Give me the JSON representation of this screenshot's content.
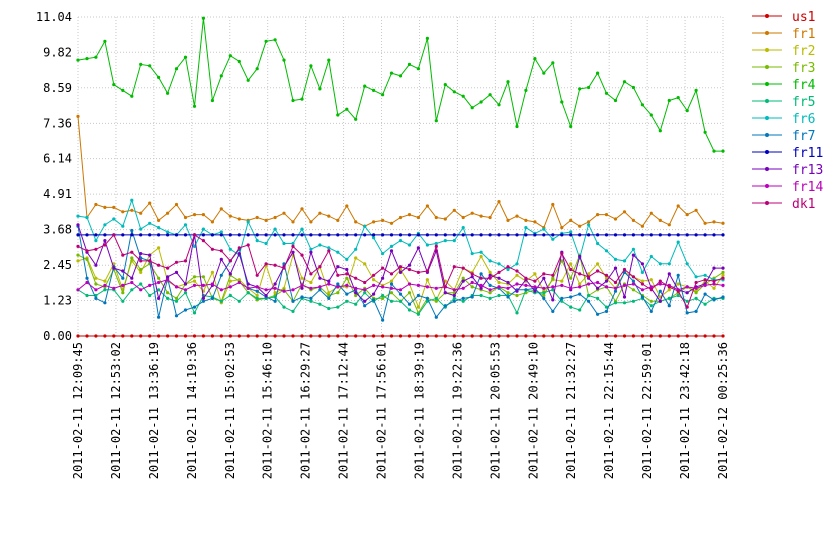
{
  "chart_data": {
    "type": "line",
    "title": "",
    "xlabel": "",
    "ylabel": "",
    "ylim": [
      0,
      11.04
    ],
    "grid": true,
    "legend_position": "right",
    "yticks": [
      "0.00",
      "1.23",
      "2.45",
      "3.68",
      "4.91",
      "6.14",
      "7.36",
      "8.59",
      "9.82",
      "11.04"
    ],
    "xticks": [
      "2011-02-11 12:09:45",
      "2011-02-11 12:53:02",
      "2011-02-11 13:36:19",
      "2011-02-11 14:19:36",
      "2011-02-11 15:02:53",
      "2011-02-11 15:46:10",
      "2011-02-11 16:29:27",
      "2011-02-11 17:12:44",
      "2011-02-11 17:56:01",
      "2011-02-11 18:39:19",
      "2011-02-11 19:22:36",
      "2011-02-11 20:05:53",
      "2011-02-11 20:49:10",
      "2011-02-11 21:32:27",
      "2011-02-11 22:15:44",
      "2011-02-11 22:59:01",
      "2011-02-11 23:42:18",
      "2011-02-12 00:25:36"
    ],
    "n_points": 73,
    "series": [
      {
        "name": "us1",
        "color": "#cc0000",
        "values": [
          0.0,
          0.0,
          0.0,
          0.0,
          0.0,
          0.0,
          0.0,
          0.0,
          0.0,
          0.0,
          0.0,
          0.0,
          0.0,
          0.0,
          0.0,
          0.0,
          0.0,
          0.0,
          0.0,
          0.0,
          0.0,
          0.0,
          0.0,
          0.0,
          0.0,
          0.0,
          0.0,
          0.0,
          0.0,
          0.0,
          0.0,
          0.0,
          0.0,
          0.0,
          0.0,
          0.0,
          0.0,
          0.0,
          0.0,
          0.0,
          0.0,
          0.0,
          0.0,
          0.0,
          0.0,
          0.0,
          0.0,
          0.0,
          0.0,
          0.0,
          0.0,
          0.0,
          0.0,
          0.0,
          0.0,
          0.0,
          0.0,
          0.0,
          0.0,
          0.0,
          0.0,
          0.0,
          0.0,
          0.0,
          0.0,
          0.0,
          0.0,
          0.0,
          0.0,
          0.0,
          0.0,
          0.0,
          0.0
        ]
      },
      {
        "name": "fr1",
        "color": "#cc7700",
        "values": [
          7.6,
          4.1,
          4.55,
          4.45,
          4.45,
          4.3,
          4.35,
          4.25,
          4.6,
          4.0,
          4.25,
          4.55,
          4.1,
          4.2,
          4.2,
          3.95,
          4.4,
          4.15,
          4.05,
          4.0,
          4.1,
          4.0,
          4.1,
          4.25,
          3.95,
          4.4,
          3.95,
          4.25,
          4.15,
          4.0,
          4.5,
          3.95,
          3.8,
          3.95,
          4.0,
          3.9,
          4.1,
          4.2,
          4.1,
          4.5,
          4.1,
          4.05,
          4.35,
          4.1,
          4.25,
          4.15,
          4.1,
          4.65,
          4.0,
          4.15,
          4.0,
          3.95,
          3.75,
          4.55,
          3.75,
          4.0,
          3.8,
          3.95,
          4.2,
          4.2,
          4.05,
          4.3,
          4.0,
          3.8,
          4.25,
          4.0,
          3.85,
          4.5,
          4.2,
          4.35,
          3.9,
          3.95,
          3.9
        ]
      },
      {
        "name": "fr2",
        "color": "#bbbb00",
        "values": [
          2.6,
          2.7,
          2.0,
          1.9,
          2.5,
          1.6,
          2.6,
          2.2,
          2.8,
          3.05,
          1.9,
          1.7,
          1.8,
          1.9,
          1.55,
          2.2,
          1.15,
          1.9,
          1.95,
          1.65,
          1.4,
          2.45,
          1.5,
          1.65,
          2.8,
          2.0,
          1.85,
          2.4,
          1.5,
          1.7,
          1.7,
          2.7,
          2.5,
          1.95,
          1.75,
          1.9,
          2.3,
          1.8,
          1.0,
          1.95,
          1.25,
          1.9,
          1.6,
          2.35,
          2.2,
          2.75,
          2.2,
          1.85,
          1.8,
          2.1,
          1.9,
          2.15,
          1.55,
          1.95,
          1.9,
          2.5,
          1.8,
          2.15,
          2.5,
          2.0,
          1.65,
          2.2,
          2.05,
          1.9,
          1.95,
          1.35,
          1.6,
          1.8,
          1.7,
          1.55,
          1.9,
          1.65,
          2.1
        ]
      },
      {
        "name": "fr3",
        "color": "#77bb00",
        "values": [
          2.8,
          2.65,
          1.8,
          1.7,
          2.3,
          1.5,
          2.7,
          2.3,
          2.5,
          2.0,
          1.5,
          1.3,
          1.8,
          2.05,
          2.05,
          1.3,
          1.2,
          2.1,
          1.9,
          1.5,
          1.25,
          1.3,
          1.4,
          1.6,
          1.2,
          1.8,
          1.6,
          1.7,
          1.4,
          1.5,
          2.0,
          1.4,
          1.65,
          1.3,
          1.3,
          1.5,
          1.2,
          1.5,
          0.8,
          1.3,
          1.2,
          1.5,
          1.5,
          2.0,
          1.7,
          1.6,
          1.5,
          1.7,
          1.5,
          1.4,
          1.5,
          1.6,
          1.4,
          2.0,
          2.6,
          2.0,
          2.8,
          1.4,
          1.6,
          1.7,
          1.2,
          1.8,
          1.6,
          1.4,
          1.2,
          1.2,
          1.3,
          1.5,
          1.7,
          1.5,
          1.8,
          2.0,
          2.2
        ]
      },
      {
        "name": "fr4",
        "color": "#00bb00",
        "values": [
          9.55,
          9.6,
          9.65,
          10.2,
          8.7,
          8.5,
          8.3,
          9.4,
          9.35,
          8.95,
          8.4,
          9.25,
          9.65,
          7.95,
          11.0,
          8.15,
          9.0,
          9.7,
          9.5,
          8.85,
          9.25,
          10.2,
          10.25,
          9.55,
          8.15,
          8.2,
          9.35,
          8.55,
          9.55,
          7.65,
          7.85,
          7.5,
          8.65,
          8.5,
          8.35,
          9.1,
          9.0,
          9.4,
          9.25,
          10.3,
          7.45,
          8.7,
          8.45,
          8.3,
          7.9,
          8.1,
          8.35,
          8.0,
          8.8,
          7.25,
          8.5,
          9.6,
          9.1,
          9.45,
          8.1,
          7.25,
          8.55,
          8.6,
          9.1,
          8.4,
          8.15,
          8.8,
          8.6,
          8.0,
          7.65,
          7.1,
          8.15,
          8.25,
          7.8,
          8.5,
          7.05,
          6.4,
          6.4
        ]
      },
      {
        "name": "fr5",
        "color": "#00bb77",
        "values": [
          1.6,
          1.4,
          1.4,
          1.6,
          1.6,
          1.2,
          1.6,
          1.8,
          1.4,
          1.6,
          1.3,
          1.2,
          1.5,
          0.8,
          1.4,
          1.35,
          1.2,
          1.4,
          1.2,
          1.5,
          1.3,
          1.3,
          1.35,
          1.0,
          0.85,
          1.3,
          1.2,
          1.1,
          0.95,
          1.0,
          1.2,
          1.1,
          1.5,
          1.2,
          1.4,
          1.2,
          1.2,
          0.9,
          0.75,
          1.2,
          1.3,
          1.0,
          1.3,
          1.2,
          1.4,
          1.4,
          1.3,
          1.4,
          1.4,
          0.8,
          1.6,
          1.5,
          1.5,
          1.6,
          1.2,
          1.0,
          0.9,
          1.4,
          1.3,
          1.0,
          1.15,
          1.15,
          1.2,
          1.3,
          1.05,
          1.2,
          1.3,
          1.4,
          1.2,
          1.3,
          1.1,
          1.3,
          1.3
        ]
      },
      {
        "name": "fr6",
        "color": "#00bbbb",
        "values": [
          4.15,
          4.1,
          3.3,
          3.85,
          4.05,
          3.8,
          4.7,
          3.7,
          3.9,
          3.75,
          3.6,
          3.5,
          3.85,
          3.1,
          3.7,
          3.5,
          3.6,
          3.0,
          2.8,
          3.95,
          3.3,
          3.2,
          3.7,
          3.2,
          3.2,
          3.7,
          3.0,
          3.15,
          3.05,
          2.9,
          2.65,
          3.0,
          3.8,
          3.4,
          2.85,
          3.1,
          3.3,
          3.15,
          3.55,
          3.15,
          3.2,
          3.3,
          3.3,
          3.75,
          2.85,
          2.9,
          2.6,
          2.5,
          2.3,
          2.5,
          3.75,
          3.55,
          3.7,
          3.35,
          3.55,
          3.6,
          2.7,
          3.85,
          3.2,
          2.95,
          2.65,
          2.6,
          3.0,
          2.2,
          2.75,
          2.5,
          2.5,
          3.25,
          2.5,
          2.05,
          2.1,
          1.95,
          1.95
        ]
      },
      {
        "name": "fr7",
        "color": "#0077bb",
        "values": [
          3.8,
          2.0,
          1.3,
          1.15,
          2.4,
          2.0,
          3.65,
          2.7,
          2.6,
          0.65,
          2.0,
          0.7,
          0.9,
          1.0,
          1.2,
          1.3,
          2.1,
          2.6,
          3.0,
          1.65,
          1.55,
          1.35,
          1.2,
          2.5,
          1.2,
          1.35,
          1.3,
          1.6,
          1.3,
          1.8,
          1.45,
          1.6,
          1.05,
          1.25,
          0.55,
          1.8,
          1.45,
          1.1,
          1.4,
          1.3,
          0.65,
          1.05,
          1.2,
          1.3,
          1.35,
          2.15,
          1.75,
          1.65,
          1.35,
          1.6,
          1.6,
          1.65,
          1.3,
          0.85,
          1.3,
          1.35,
          1.45,
          1.2,
          0.75,
          0.85,
          1.55,
          2.2,
          1.9,
          1.35,
          0.85,
          1.55,
          1.05,
          2.1,
          0.8,
          0.85,
          1.45,
          1.25,
          1.35
        ]
      },
      {
        "name": "fr11",
        "color": "#0000bb",
        "values": [
          3.5,
          3.5,
          3.5,
          3.5,
          3.5,
          3.5,
          3.5,
          3.5,
          3.5,
          3.5,
          3.5,
          3.5,
          3.5,
          3.5,
          3.5,
          3.5,
          3.5,
          3.5,
          3.5,
          3.5,
          3.5,
          3.5,
          3.5,
          3.5,
          3.5,
          3.5,
          3.5,
          3.5,
          3.5,
          3.5,
          3.5,
          3.5,
          3.5,
          3.5,
          3.5,
          3.5,
          3.5,
          3.5,
          3.5,
          3.5,
          3.5,
          3.5,
          3.5,
          3.5,
          3.5,
          3.5,
          3.5,
          3.5,
          3.5,
          3.5,
          3.5,
          3.5,
          3.5,
          3.5,
          3.5,
          3.5,
          3.5,
          3.5,
          3.5,
          3.5,
          3.5,
          3.5,
          3.5,
          3.5,
          3.5,
          3.5,
          3.5,
          3.5,
          3.5,
          3.5,
          3.5,
          3.5,
          3.5
        ]
      },
      {
        "name": "fr13",
        "color": "#7700bb",
        "values": [
          3.85,
          2.9,
          2.45,
          3.3,
          2.35,
          2.25,
          2.0,
          2.85,
          2.8,
          1.3,
          2.05,
          2.2,
          1.8,
          3.5,
          1.3,
          1.75,
          2.65,
          2.15,
          2.85,
          1.8,
          1.7,
          1.4,
          1.8,
          2.4,
          2.9,
          1.65,
          2.9,
          2.0,
          1.9,
          2.4,
          2.3,
          1.5,
          1.2,
          1.45,
          2.0,
          2.95,
          2.2,
          2.45,
          3.05,
          2.2,
          2.95,
          1.5,
          1.4,
          1.9,
          2.05,
          1.65,
          2.1,
          2.0,
          1.85,
          1.55,
          1.95,
          1.55,
          2.0,
          1.25,
          2.9,
          1.6,
          2.75,
          2.0,
          1.65,
          1.9,
          2.35,
          1.35,
          2.8,
          2.5,
          1.65,
          1.2,
          2.15,
          1.6,
          1.5,
          1.7,
          1.8,
          2.35,
          2.35
        ]
      },
      {
        "name": "fr14",
        "color": "#bb00bb",
        "values": [
          1.6,
          1.85,
          1.6,
          1.75,
          1.65,
          1.75,
          1.85,
          1.6,
          1.75,
          1.85,
          1.95,
          1.7,
          1.6,
          1.75,
          1.75,
          1.8,
          1.6,
          1.7,
          1.85,
          1.65,
          1.7,
          1.6,
          1.65,
          1.55,
          1.6,
          1.75,
          1.65,
          1.7,
          1.8,
          1.7,
          1.75,
          1.65,
          1.6,
          1.75,
          1.7,
          1.65,
          1.6,
          1.8,
          1.75,
          1.7,
          1.65,
          1.7,
          1.6,
          1.65,
          1.85,
          1.75,
          1.6,
          1.7,
          1.65,
          1.8,
          1.75,
          1.7,
          1.65,
          1.7,
          1.75,
          1.65,
          1.7,
          1.8,
          1.85,
          1.7,
          1.65,
          1.75,
          1.8,
          1.6,
          1.7,
          1.8,
          1.75,
          1.6,
          1.7,
          1.65,
          1.75,
          1.8,
          1.75
        ]
      },
      {
        "name": "dk1",
        "color": "#bb0077",
        "values": [
          3.1,
          2.95,
          3.0,
          3.15,
          3.5,
          2.8,
          2.9,
          2.6,
          2.6,
          2.45,
          2.35,
          2.55,
          2.6,
          3.5,
          3.3,
          3.0,
          2.95,
          2.6,
          3.05,
          3.15,
          2.1,
          2.5,
          2.45,
          2.35,
          3.1,
          2.8,
          2.15,
          2.4,
          2.95,
          2.1,
          2.15,
          2.0,
          1.85,
          2.1,
          2.35,
          2.15,
          2.4,
          2.3,
          2.2,
          2.25,
          3.1,
          1.7,
          2.4,
          2.35,
          2.15,
          2.0,
          2.0,
          2.2,
          2.4,
          2.25,
          2.0,
          1.9,
          2.15,
          2.1,
          2.85,
          2.3,
          2.15,
          2.05,
          2.25,
          2.1,
          1.85,
          2.3,
          2.05,
          1.8,
          1.6,
          1.9,
          1.7,
          1.55,
          1.0,
          1.85,
          1.95,
          1.9,
          2.0
        ]
      }
    ]
  }
}
